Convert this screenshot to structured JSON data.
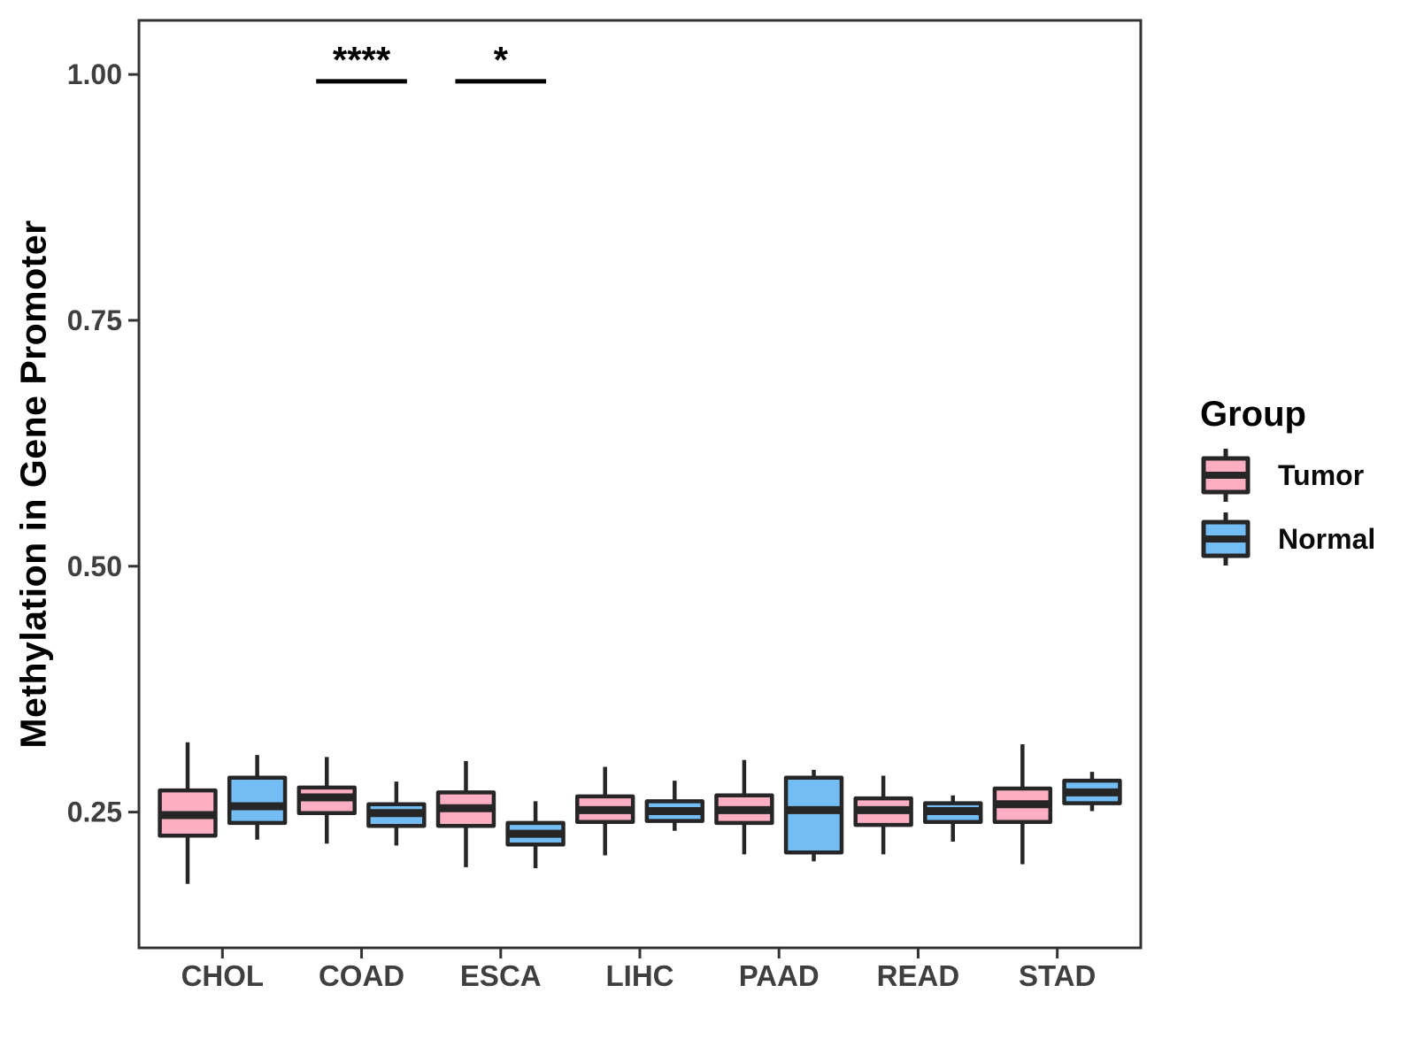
{
  "chart_data": {
    "type": "boxplot",
    "title": "",
    "xlabel": "",
    "ylabel": "Methylation in Gene Promoter",
    "categories": [
      "CHOL",
      "COAD",
      "ESCA",
      "LIHC",
      "PAAD",
      "READ",
      "STAD"
    ],
    "y_tick_labels": [
      "0.25",
      "0.50",
      "0.75",
      "1.00"
    ],
    "y_tick_values": [
      0.25,
      0.5,
      0.75,
      1.0
    ],
    "ylim": [
      0.112,
      1.055
    ],
    "grid": "off",
    "legend_position": "right",
    "series": [
      {
        "name": "Tumor",
        "color": "#FCAFC2",
        "stats": [
          {
            "lo": 0.177,
            "q1": 0.226,
            "med": 0.247,
            "q3": 0.272,
            "hi": 0.321
          },
          {
            "lo": 0.218,
            "q1": 0.249,
            "med": 0.265,
            "q3": 0.275,
            "hi": 0.306
          },
          {
            "lo": 0.194,
            "q1": 0.236,
            "med": 0.254,
            "q3": 0.27,
            "hi": 0.302
          },
          {
            "lo": 0.206,
            "q1": 0.24,
            "med": 0.252,
            "q3": 0.266,
            "hi": 0.296
          },
          {
            "lo": 0.207,
            "q1": 0.239,
            "med": 0.252,
            "q3": 0.267,
            "hi": 0.303
          },
          {
            "lo": 0.207,
            "q1": 0.237,
            "med": 0.252,
            "q3": 0.264,
            "hi": 0.287
          },
          {
            "lo": 0.197,
            "q1": 0.24,
            "med": 0.258,
            "q3": 0.274,
            "hi": 0.319
          }
        ]
      },
      {
        "name": "Normal",
        "color": "#73BDF4",
        "stats": [
          {
            "lo": 0.222,
            "q1": 0.239,
            "med": 0.256,
            "q3": 0.285,
            "hi": 0.308
          },
          {
            "lo": 0.216,
            "q1": 0.236,
            "med": 0.249,
            "q3": 0.258,
            "hi": 0.281
          },
          {
            "lo": 0.193,
            "q1": 0.217,
            "med": 0.228,
            "q3": 0.239,
            "hi": 0.261
          },
          {
            "lo": 0.231,
            "q1": 0.241,
            "med": 0.251,
            "q3": 0.261,
            "hi": 0.282
          },
          {
            "lo": 0.2,
            "q1": 0.209,
            "med": 0.252,
            "q3": 0.285,
            "hi": 0.293
          },
          {
            "lo": 0.22,
            "q1": 0.24,
            "med": 0.251,
            "q3": 0.259,
            "hi": 0.267
          },
          {
            "lo": 0.251,
            "q1": 0.259,
            "med": 0.27,
            "q3": 0.282,
            "hi": 0.291
          }
        ]
      }
    ],
    "significance": [
      {
        "category": "COAD",
        "label": "****",
        "line_y": 0.993
      },
      {
        "category": "ESCA",
        "label": "*",
        "line_y": 0.993
      }
    ]
  },
  "legend": {
    "title": "Group",
    "items": [
      {
        "label": "Tumor",
        "color": "#FCAFC2"
      },
      {
        "label": "Normal",
        "color": "#73BDF4"
      }
    ]
  },
  "colors": {
    "panel_border": "#333333",
    "box_stroke": "#262626",
    "tick_text": "#3F3F3F",
    "axis_title": "#000000",
    "significance": "#000000",
    "background": "#FFFFFF"
  }
}
